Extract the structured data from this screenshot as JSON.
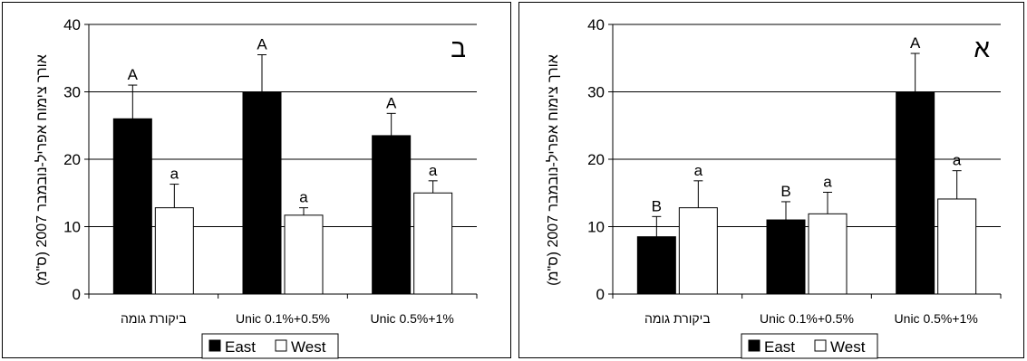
{
  "chart_data": [
    {
      "type": "bar",
      "panel_label": "ב",
      "categories": [
        "ביקורת גומה",
        "Unic 0.1%+0.5%",
        "Unic 0.5%+1%"
      ],
      "series": [
        {
          "name": "East",
          "values": [
            26,
            30,
            23.5
          ],
          "errors": [
            5,
            5.5,
            3.3
          ],
          "letters": [
            "A",
            "A",
            "A"
          ],
          "color": "#000000"
        },
        {
          "name": "West",
          "values": [
            12.8,
            11.7,
            15
          ],
          "errors": [
            3.5,
            1.1,
            1.8
          ],
          "letters": [
            "a",
            "a",
            "a"
          ],
          "color": "#ffffff"
        }
      ],
      "ylabel": "אורך צימוח אפריל-נובמבר 2007 (ס\"מ)",
      "ylim": [
        0,
        40
      ],
      "yticks": [
        "0",
        "10",
        "20",
        "30",
        "40"
      ],
      "grid": true,
      "legend": "bottom"
    },
    {
      "type": "bar",
      "panel_label": "א",
      "categories": [
        "ביקורת גומה",
        "Unic 0.1%+0.5%",
        "Unic 0.5%+1%"
      ],
      "series": [
        {
          "name": "East",
          "values": [
            8.5,
            11,
            30
          ],
          "errors": [
            3,
            2.7,
            5.7
          ],
          "letters": [
            "B",
            "B",
            "A"
          ],
          "color": "#000000"
        },
        {
          "name": "West",
          "values": [
            12.8,
            11.9,
            14.1
          ],
          "errors": [
            4,
            3.2,
            4.2
          ],
          "letters": [
            "a",
            "a",
            "a"
          ],
          "color": "#ffffff"
        }
      ],
      "ylabel": "אורך צימוח אפריל-נובמבר 2007 (ס\"מ)",
      "ylim": [
        0,
        40
      ],
      "yticks": [
        "0",
        "10",
        "20",
        "30",
        "40"
      ],
      "grid": true,
      "legend": "bottom"
    }
  ]
}
